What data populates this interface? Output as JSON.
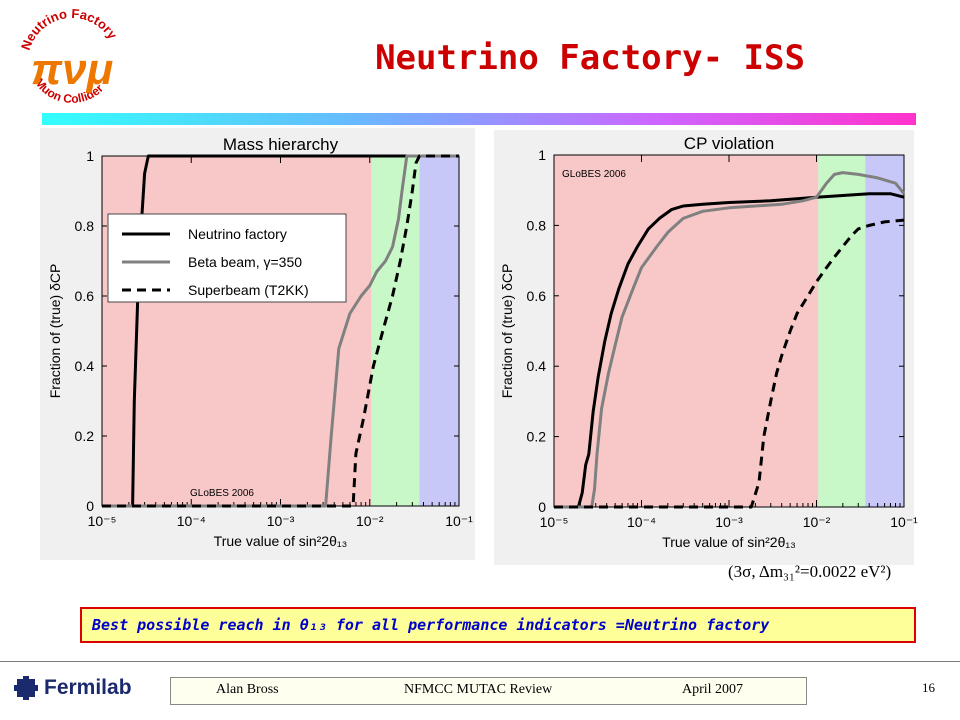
{
  "slide": {
    "title": "Neutrino Factory- ISS",
    "note": "Best possible reach in θ₁₃ for all performance indicators =Neutrino factory",
    "sigma_note": "(3σ, Δm₃₁²=0.0022 eV²)",
    "logo_text_top": "Neutrino Factory",
    "logo_text_bottom": "Muon Collider",
    "logo_symbols": "πνμ"
  },
  "footer": {
    "organization": "Fermilab",
    "presenter": "Alan Bross",
    "event": "NFMCC MUTAC Review",
    "date": "April 2007",
    "page": "16"
  },
  "colors": {
    "title": "#cc0000",
    "note_text": "#0000cc",
    "note_border": "#dd0000",
    "note_bg": "#ffff99",
    "band_red": "#f8c8c8",
    "band_green": "#c8f8c8",
    "band_blue": "#c8c8f8"
  },
  "chart_data": [
    {
      "type": "line",
      "title": "Mass hierarchy",
      "xlabel": "True value of sin²2θ₁₃",
      "ylabel": "Fraction of (true) δCP",
      "xscale": "log",
      "xlim": [
        1e-05,
        0.1
      ],
      "ylim": [
        0,
        1
      ],
      "xticks": [
        "10⁻⁵",
        "10⁻⁴",
        "10⁻³",
        "10⁻²",
        "10⁻¹"
      ],
      "yticks": [
        "0",
        "0.2",
        "0.4",
        "0.6",
        "0.8",
        "1"
      ],
      "watermark": "GLoBES 2006",
      "legend_position": "upper-left",
      "bands": [
        {
          "from": 1e-05,
          "to": 0.0105,
          "color": "red"
        },
        {
          "from": 0.0105,
          "to": 0.036,
          "color": "green"
        },
        {
          "from": 0.036,
          "to": 0.1,
          "color": "blue"
        }
      ],
      "series": [
        {
          "name": "Neutrino factory",
          "style": "solid-black",
          "x": [
            1e-05,
            2.2e-05,
            2.3e-05,
            2.6e-05,
            3e-05,
            3.3e-05,
            0.1
          ],
          "y": [
            0,
            0,
            0.3,
            0.7,
            0.95,
            1.0,
            1.0
          ]
        },
        {
          "name": "Beta beam, γ=350",
          "style": "solid-gray",
          "x": [
            1e-05,
            0.0032,
            0.0037,
            0.0045,
            0.006,
            0.008,
            0.01,
            0.012,
            0.015,
            0.018,
            0.021,
            0.023,
            0.026,
            0.03,
            0.1
          ],
          "y": [
            0,
            0,
            0.2,
            0.45,
            0.55,
            0.6,
            0.63,
            0.67,
            0.7,
            0.74,
            0.82,
            0.9,
            1.0,
            1.0,
            1.0
          ]
        },
        {
          "name": "Superbeam (T2KK)",
          "style": "dashed-black",
          "x": [
            1e-05,
            0.0065,
            0.007,
            0.0085,
            0.011,
            0.014,
            0.018,
            0.022,
            0.026,
            0.03,
            0.033,
            0.036,
            0.04,
            0.1
          ],
          "y": [
            0,
            0,
            0.15,
            0.25,
            0.4,
            0.5,
            0.6,
            0.7,
            0.8,
            0.9,
            0.98,
            1.0,
            1.0,
            1.0
          ]
        }
      ]
    },
    {
      "type": "line",
      "title": "CP violation",
      "xlabel": "True value of sin²2θ₁₃",
      "ylabel": "Fraction of (true) δCP",
      "xscale": "log",
      "xlim": [
        1e-05,
        0.1
      ],
      "ylim": [
        0,
        1
      ],
      "xticks": [
        "10⁻⁵",
        "10⁻⁴",
        "10⁻³",
        "10⁻²",
        "10⁻¹"
      ],
      "yticks": [
        "0",
        "0.2",
        "0.4",
        "0.6",
        "0.8",
        "1"
      ],
      "watermark": "GLoBES 2006",
      "bands": [
        {
          "from": 1e-05,
          "to": 0.0105,
          "color": "red"
        },
        {
          "from": 0.0105,
          "to": 0.036,
          "color": "green"
        },
        {
          "from": 0.036,
          "to": 0.1,
          "color": "blue"
        }
      ],
      "series": [
        {
          "name": "Neutrino factory",
          "style": "solid-black",
          "x": [
            1e-05,
            1.9e-05,
            2.1e-05,
            2.3e-05,
            2.5e-05,
            2.8e-05,
            3.2e-05,
            3.8e-05,
            4.5e-05,
            5.5e-05,
            7e-05,
            9e-05,
            0.00012,
            0.00016,
            0.00022,
            0.0003,
            0.0005,
            0.001,
            0.003,
            0.01,
            0.02,
            0.04,
            0.07,
            0.1
          ],
          "y": [
            0,
            0,
            0.04,
            0.12,
            0.15,
            0.27,
            0.37,
            0.47,
            0.55,
            0.62,
            0.69,
            0.74,
            0.79,
            0.82,
            0.845,
            0.855,
            0.86,
            0.865,
            0.87,
            0.88,
            0.885,
            0.89,
            0.89,
            0.88
          ]
        },
        {
          "name": "Beta beam, γ=350",
          "style": "solid-gray",
          "x": [
            1e-05,
            2.7e-05,
            2.9e-05,
            3.1e-05,
            3.5e-05,
            4.2e-05,
            5e-05,
            6e-05,
            8e-05,
            0.0001,
            0.00015,
            0.0002,
            0.0003,
            0.0005,
            0.001,
            0.002,
            0.004,
            0.007,
            0.01,
            0.013,
            0.016,
            0.02,
            0.03,
            0.05,
            0.08,
            0.1
          ],
          "y": [
            0,
            0,
            0.05,
            0.15,
            0.28,
            0.38,
            0.46,
            0.54,
            0.62,
            0.68,
            0.74,
            0.78,
            0.82,
            0.84,
            0.85,
            0.855,
            0.86,
            0.87,
            0.88,
            0.92,
            0.945,
            0.95,
            0.945,
            0.935,
            0.92,
            0.89
          ]
        },
        {
          "name": "Superbeam (T2KK)",
          "style": "dashed-black",
          "x": [
            1e-05,
            0.0018,
            0.0022,
            0.0025,
            0.003,
            0.0035,
            0.004,
            0.005,
            0.006,
            0.008,
            0.01,
            0.013,
            0.016,
            0.02,
            0.025,
            0.03,
            0.04,
            0.06,
            0.1
          ],
          "y": [
            0,
            0,
            0.07,
            0.2,
            0.3,
            0.38,
            0.43,
            0.5,
            0.55,
            0.6,
            0.64,
            0.68,
            0.71,
            0.74,
            0.77,
            0.79,
            0.8,
            0.81,
            0.815
          ]
        }
      ]
    }
  ]
}
